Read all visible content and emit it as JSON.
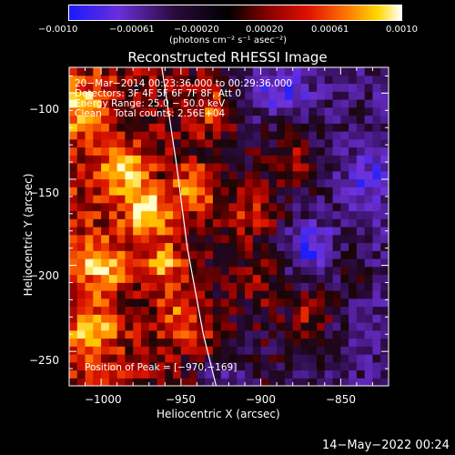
{
  "colorbar": {
    "tick_labels": [
      "−0.0010",
      "−0.00061",
      "−0.00020",
      "0.00020",
      "0.00061",
      "0.0010"
    ],
    "unit_label": "(photons cm⁻² s⁻¹ asec⁻²)",
    "range": [
      -0.001,
      0.001
    ]
  },
  "chart_data": {
    "type": "heatmap",
    "title": "Reconstructed RHESSI Image",
    "xlabel": "Heliocentric X (arcsec)",
    "ylabel": "Heliocentric Y (arcsec)",
    "xlim": [
      -1020,
      -820
    ],
    "ylim": [
      -270,
      -85
    ],
    "x_ticks": [
      -1000,
      -950,
      -900,
      -850
    ],
    "y_ticks": [
      -250,
      -200,
      -150,
      -100
    ],
    "x_tick_labels": [
      "−1000",
      "−950",
      "−900",
      "−850"
    ],
    "y_tick_labels": [
      "−250",
      "−200",
      "−150",
      "−100"
    ],
    "annotations": [
      "20−Mar−2014 00:23:36.000 to 00:29:36.000",
      "Detectors: 3F 4F 5F 6F 7F 8F, Att 0",
      "Energy Range: 25.0 − 50.0 keV",
      "Clean    Total counts: 2.56E+04"
    ],
    "peak_label": "Position of Peak = [−970,−169]",
    "peak_position": [
      -970,
      -169
    ],
    "hot_spots": [
      {
        "x": -970,
        "y": -169,
        "intensity": 1.0
      },
      {
        "x": -985,
        "y": -145,
        "intensity": 0.85
      },
      {
        "x": -940,
        "y": -155,
        "intensity": 0.8
      },
      {
        "x": -1000,
        "y": -200,
        "intensity": 0.75
      },
      {
        "x": -1010,
        "y": -110,
        "intensity": 0.75
      },
      {
        "x": -960,
        "y": -200,
        "intensity": 0.7
      },
      {
        "x": -1005,
        "y": -240,
        "intensity": 0.65
      },
      {
        "x": -930,
        "y": -110,
        "intensity": 0.6
      },
      {
        "x": -905,
        "y": -170,
        "intensity": 0.55
      },
      {
        "x": -880,
        "y": -140,
        "intensity": 0.5
      },
      {
        "x": -870,
        "y": -230,
        "intensity": 0.55
      },
      {
        "x": -950,
        "y": -230,
        "intensity": 0.55
      },
      {
        "x": -930,
        "y": -250,
        "intensity": 0.45
      },
      {
        "x": -900,
        "y": -210,
        "intensity": 0.4
      },
      {
        "x": -845,
        "y": -200,
        "intensity": 0.35
      }
    ],
    "cold_spots": [
      {
        "x": -868,
        "y": -190,
        "intensity": 0.9
      },
      {
        "x": -925,
        "y": -262,
        "intensity": 0.85
      },
      {
        "x": -880,
        "y": -95,
        "intensity": 0.7
      },
      {
        "x": -835,
        "y": -150,
        "intensity": 0.6
      },
      {
        "x": -900,
        "y": -100,
        "intensity": 0.6
      }
    ],
    "limb_curve": [
      [
        -962,
        -85
      ],
      [
        -953,
        -140
      ],
      [
        -946,
        -190
      ],
      [
        -936,
        -240
      ],
      [
        -928,
        -270
      ]
    ]
  },
  "footer": {
    "date": "14−May−2022 00:24"
  },
  "colors": {
    "background": "#000000",
    "text": "#ffffff"
  }
}
